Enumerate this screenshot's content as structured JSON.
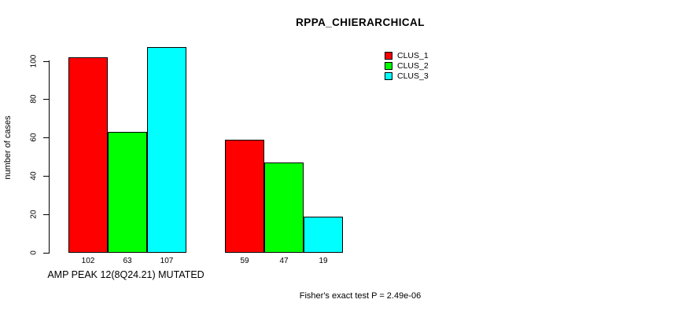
{
  "title": "RPPA_CHIERARCHICAL",
  "y_axis": {
    "label": "number of cases",
    "ticks": [
      0,
      20,
      40,
      60,
      80,
      100
    ]
  },
  "x_axis": {
    "category_label": "AMP PEAK 12(8Q24.21) MUTATED"
  },
  "footer": "Fisher's exact test P = 2.49e-06",
  "legend": [
    {
      "label": "CLUS_1",
      "color": "#ff0000"
    },
    {
      "label": "CLUS_2",
      "color": "#00ff00"
    },
    {
      "label": "CLUS_3",
      "color": "#00ffff"
    }
  ],
  "chart_data": {
    "type": "bar",
    "title": "RPPA_CHIERARCHICAL",
    "ylabel": "number of cases",
    "xlabel": "AMP PEAK 12(8Q24.21) MUTATED",
    "ylim": [
      0,
      100
    ],
    "grid": false,
    "legend_position": "top-right",
    "series_names": [
      "CLUS_1",
      "CLUS_2",
      "CLUS_3"
    ],
    "colors": [
      "#ff0000",
      "#00ff00",
      "#00ffff"
    ],
    "groups": [
      {
        "name": "AMP PEAK 12(8Q24.21) MUTATED",
        "values": [
          102,
          63,
          107
        ]
      },
      {
        "name": "",
        "values": [
          59,
          47,
          19
        ]
      }
    ],
    "annotation": "Fisher's exact test P = 2.49e-06"
  }
}
